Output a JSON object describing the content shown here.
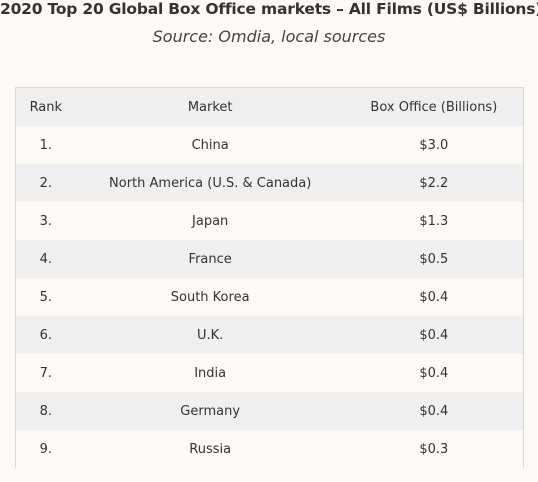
{
  "title": "2020 Top 20 Global Box Office markets – All Films (US$ Billions)",
  "subtitle": "Source: Omdia, local sources",
  "colors": {
    "background": "#fdfaf6",
    "stripe": "#efefef",
    "text": "#333333"
  },
  "chart_data": {
    "type": "table",
    "title": "2020 Top 20 Global Box Office markets – All Films (US$ Billions)",
    "subtitle": "Source: Omdia, local sources",
    "columns": [
      "Rank",
      "Market",
      "Box Office (Billions)"
    ],
    "rows": [
      [
        "1.",
        "China",
        "$3.0"
      ],
      [
        "2.",
        "North America (U.S. & Canada)",
        "$2.2"
      ],
      [
        "3.",
        "Japan",
        "$1.3"
      ],
      [
        "4.",
        "France",
        "$0.5"
      ],
      [
        "5.",
        "South Korea",
        "$0.4"
      ],
      [
        "6.",
        "U.K.",
        "$0.4"
      ],
      [
        "7.",
        "India",
        "$0.4"
      ],
      [
        "8.",
        "Germany",
        "$0.4"
      ],
      [
        "9.",
        "Russia",
        "$0.3"
      ]
    ],
    "values": [
      3.0,
      2.2,
      1.3,
      0.5,
      0.4,
      0.4,
      0.4,
      0.4,
      0.3
    ]
  }
}
